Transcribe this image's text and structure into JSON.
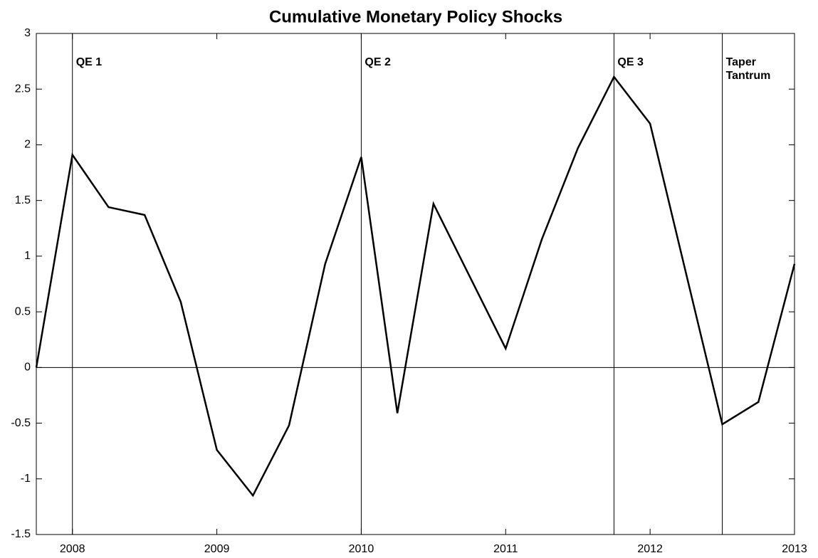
{
  "chart_data": {
    "type": "line",
    "title": "Cumulative Monetary Policy Shocks",
    "x": [
      2007.75,
      2008,
      2008.25,
      2008.5,
      2008.75,
      2009,
      2009.25,
      2009.5,
      2009.75,
      2010,
      2010.25,
      2010.5,
      2010.75,
      2011,
      2011.25,
      2011.5,
      2011.75,
      2012,
      2012.25,
      2012.5,
      2012.75,
      2013
    ],
    "series": [
      {
        "color": "#000000",
        "values": [
          0,
          1.91,
          1.44,
          1.37,
          0.59,
          -0.74,
          -1.15,
          -0.52,
          0.93,
          1.89,
          -0.41,
          1.47,
          0.82,
          0.17,
          1.15,
          1.97,
          2.61,
          2.19,
          0.84,
          -0.51,
          -0.31,
          0.93
        ]
      }
    ],
    "xlim": [
      2007.75,
      2013
    ],
    "xticks": [
      2008,
      2009,
      2010,
      2011,
      2012,
      2013
    ],
    "ylim": [
      -1.5,
      3
    ],
    "yticks": [
      -1.5,
      -1,
      -0.5,
      0,
      0.5,
      1,
      1.5,
      2,
      2.5,
      3
    ],
    "zero_line": 0,
    "events": [
      {
        "x": 2008,
        "lines": [
          "QE 1"
        ]
      },
      {
        "x": 2010,
        "lines": [
          "QE 2"
        ]
      },
      {
        "x": 2011.75,
        "lines": [
          "QE 3"
        ]
      },
      {
        "x": 2012.5,
        "lines": [
          "Taper",
          "Tantrum"
        ]
      }
    ]
  }
}
